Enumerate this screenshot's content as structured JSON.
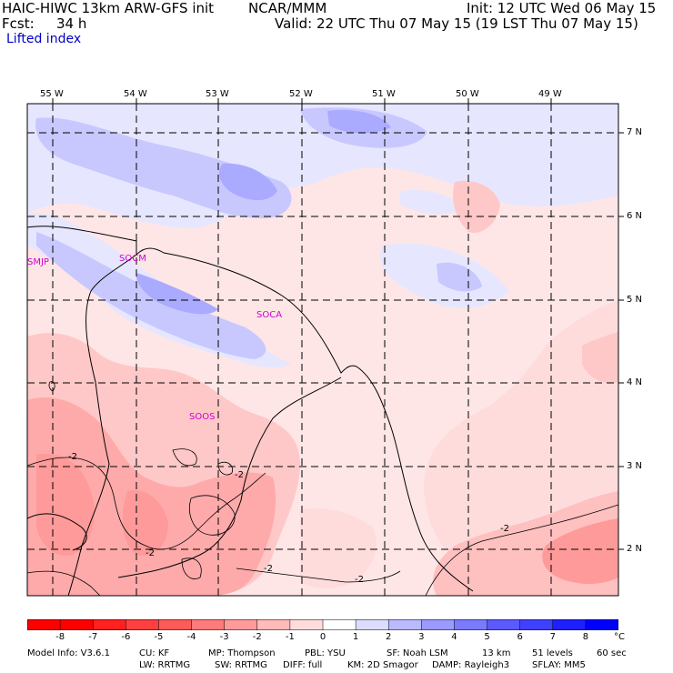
{
  "header": {
    "model_title": "HAIC-HIWC 13km ARW-GFS init",
    "org": "NCAR/MMM",
    "init": "Init: 12 UTC Wed 06 May 15",
    "fcst_label": "Fcst:",
    "fcst_value": "34 h",
    "valid": "Valid: 22 UTC Thu 07 May 15 (19 LST Thu 07 May 15)",
    "field": "Lifted index"
  },
  "map": {
    "lon_labels": [
      "55 W",
      "54 W",
      "53 W",
      "52 W",
      "51 W",
      "50 W",
      "49 W"
    ],
    "lat_labels": [
      "7 N",
      "6 N",
      "5 N",
      "4 N",
      "3 N",
      "2 N"
    ],
    "stations": [
      "SMJP",
      "SOCM",
      "SOCA",
      "SOOS"
    ],
    "contour_labels": [
      "-2",
      "-2",
      "-2",
      "-2",
      "-2",
      "-2"
    ]
  },
  "colorbar": {
    "labels": [
      "-8",
      "-7",
      "-6",
      "-5",
      "-4",
      "-3",
      "-2",
      "-1",
      "0",
      "1",
      "2",
      "3",
      "4",
      "5",
      "6",
      "7",
      "8"
    ],
    "unit": "°C",
    "colors": [
      "#ff0000",
      "#ff2020",
      "#ff4040",
      "#ff5a5a",
      "#ff7a7a",
      "#ff9a9a",
      "#ffbaba",
      "#ffdcdc",
      "#ffffff",
      "#dcdcff",
      "#babaff",
      "#9a9aff",
      "#7a7aff",
      "#5a5aff",
      "#4040ff",
      "#2020ff",
      "#0000ff"
    ]
  },
  "footer": {
    "line1": [
      "Model Info: V3.6.1",
      "CU: KF",
      "MP: Thompson",
      "PBL: YSU",
      "SF: Noah LSM",
      "13 km",
      "51 levels",
      "60 sec"
    ],
    "line2": [
      "LW: RRTMG",
      "SW: RRTMG",
      "DIFF: full",
      "KM: 2D Smagor",
      "DAMP: Rayleigh3",
      "SFLAY: MM5"
    ]
  }
}
